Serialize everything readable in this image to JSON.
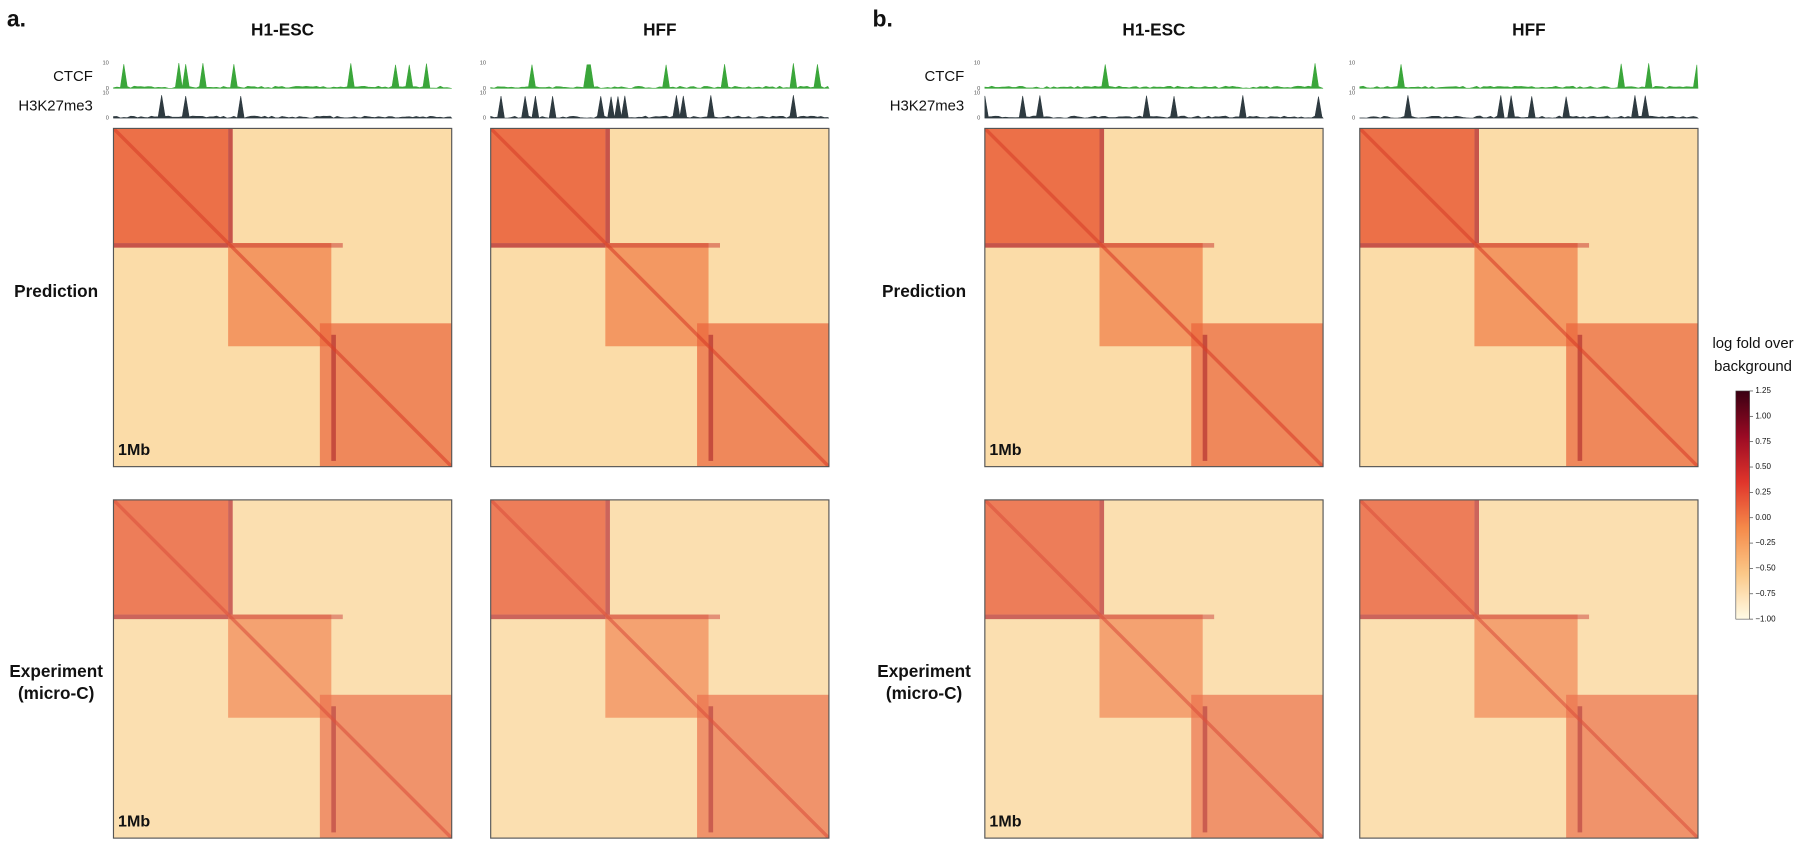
{
  "panels": [
    {
      "label": "a.",
      "columns": [
        "H1-ESC",
        "HFF"
      ],
      "tracks": [
        "CTCF",
        "H3K27me3"
      ],
      "track_scale": [
        "10",
        "0"
      ],
      "rows": [
        [
          "Prediction"
        ],
        [
          "Experiment",
          "(micro-C)"
        ]
      ],
      "scale_bar": "1Mb"
    },
    {
      "label": "b.",
      "columns": [
        "H1-ESC",
        "HFF"
      ],
      "tracks": [
        "CTCF",
        "H3K27me3"
      ],
      "track_scale": [
        "10",
        "0"
      ],
      "rows": [
        [
          "Prediction"
        ],
        [
          "Experiment",
          "(micro-C)"
        ]
      ],
      "scale_bar": "1Mb"
    }
  ],
  "colorbar": {
    "title": [
      "log fold over",
      "background"
    ],
    "ticks": [
      {
        "value": 1.25,
        "label": "1.25"
      },
      {
        "value": 1.0,
        "label": "1.00"
      },
      {
        "value": 0.75,
        "label": "0.75"
      },
      {
        "value": 0.5,
        "label": "0.50"
      },
      {
        "value": 0.25,
        "label": "0.25"
      },
      {
        "value": 0,
        "label": "0.00"
      },
      {
        "value": -0.25,
        "label": "−0.25"
      },
      {
        "value": -0.5,
        "label": "−0.50"
      },
      {
        "value": -0.75,
        "label": "−0.75"
      },
      {
        "value": -1.0,
        "label": "−1.00"
      }
    ]
  }
}
